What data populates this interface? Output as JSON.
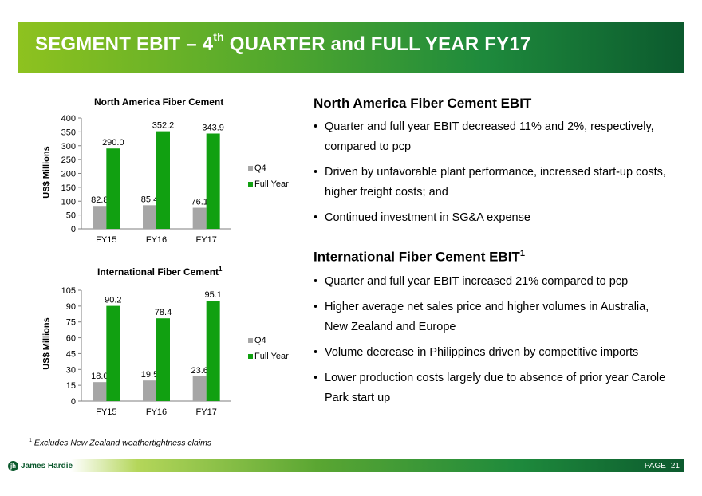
{
  "header": {
    "title_pre": "SEGMENT EBIT – 4",
    "title_sup": "th",
    "title_post": " QUARTER and FULL YEAR FY17"
  },
  "colors": {
    "q4": "#a6a6a6",
    "full_year": "#11a011",
    "banner_dark": "#0c5a2e",
    "banner_light": "#8ec21f"
  },
  "chart_data": [
    {
      "type": "bar",
      "title": "North America Fiber Cement",
      "title_sup": "",
      "ylabel": "US$ Millions",
      "xlabel": "",
      "categories": [
        "FY15",
        "FY16",
        "FY17"
      ],
      "ylim": [
        0,
        400
      ],
      "yticks": [
        0,
        50,
        100,
        150,
        200,
        250,
        300,
        350,
        400
      ],
      "series": [
        {
          "name": "Q4",
          "values": [
            82.8,
            85.4,
            76.1
          ],
          "labels": [
            "82.8",
            "85.4",
            "76.1"
          ]
        },
        {
          "name": "Full Year",
          "values": [
            290.0,
            352.2,
            343.9
          ],
          "labels": [
            "290.0",
            "352.2",
            "343.9"
          ]
        }
      ],
      "legend_position": "right"
    },
    {
      "type": "bar",
      "title": "International Fiber Cement",
      "title_sup": "1",
      "ylabel": "US$ Millions",
      "xlabel": "",
      "categories": [
        "FY15",
        "FY16",
        "FY17"
      ],
      "ylim": [
        0,
        105
      ],
      "yticks": [
        0,
        15,
        30,
        45,
        60,
        75,
        90,
        105
      ],
      "series": [
        {
          "name": "Q4",
          "values": [
            18.0,
            19.5,
            23.6
          ],
          "labels": [
            "18.0",
            "19.5",
            "23.6"
          ]
        },
        {
          "name": "Full Year",
          "values": [
            90.2,
            78.4,
            95.1
          ],
          "labels": [
            "90.2",
            "78.4",
            "95.1"
          ]
        }
      ],
      "legend_position": "right"
    }
  ],
  "sections": {
    "na": {
      "title": "North America Fiber Cement EBIT",
      "bullets": [
        "Quarter and full year EBIT decreased 11% and 2%, respectively, compared to pcp",
        "Driven by unfavorable plant performance, increased start-up costs, higher freight costs; and",
        "Continued investment in SG&A expense"
      ]
    },
    "intl": {
      "title": "International Fiber Cement EBIT",
      "title_sup": "1",
      "bullets": [
        "Quarter and full year EBIT increased 21% compared to pcp",
        "Higher average net sales price and higher volumes in Australia, New Zealand and Europe",
        "Volume decrease in Philippines driven by competitive imports",
        "Lower production costs largely due to absence of prior year Carole Park start up"
      ]
    }
  },
  "footnote": {
    "sup": "1",
    "text": " Excludes New Zealand weathertightness claims"
  },
  "footer": {
    "logo_mark": "jh",
    "logo_text": "James Hardie",
    "page_label": "PAGE",
    "page_number": "21"
  }
}
